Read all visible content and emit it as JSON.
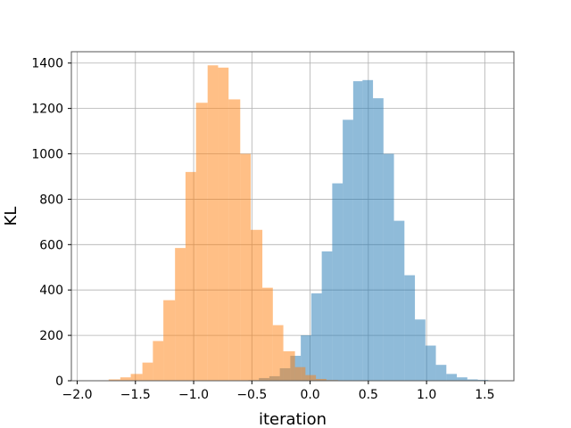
{
  "chart_data": {
    "type": "bar",
    "subtype": "overlaid-histogram",
    "title": "",
    "xlabel": "iteration",
    "ylabel": "KL",
    "xlim": [
      -2.05,
      1.75
    ],
    "ylim": [
      0,
      1450
    ],
    "xticks": [
      -2.0,
      -1.5,
      -1.0,
      -0.5,
      0.0,
      0.5,
      1.0,
      1.5
    ],
    "xtick_labels": [
      "−2.0",
      "−1.5",
      "−1.0",
      "−0.5",
      "0.0",
      "0.5",
      "1.0",
      "1.5"
    ],
    "yticks": [
      0,
      200,
      400,
      600,
      800,
      1000,
      1200,
      1400
    ],
    "ytick_labels": [
      "0",
      "200",
      "400",
      "600",
      "800",
      "1000",
      "1200",
      "1400"
    ],
    "grid": true,
    "series": [
      {
        "color": "#1f77b4",
        "opacity": 0.5,
        "bins": [
          [
            -0.53,
            -0.44,
            3
          ],
          [
            -0.44,
            -0.35,
            12
          ],
          [
            -0.35,
            -0.26,
            20
          ],
          [
            -0.26,
            -0.17,
            55
          ],
          [
            -0.17,
            -0.08,
            110
          ],
          [
            -0.08,
            0.01,
            200
          ],
          [
            0.01,
            0.1,
            385
          ],
          [
            0.1,
            0.19,
            570
          ],
          [
            0.19,
            0.28,
            870
          ],
          [
            0.28,
            0.37,
            1150
          ],
          [
            0.37,
            0.45,
            1320
          ],
          [
            0.45,
            0.54,
            1325
          ],
          [
            0.54,
            0.63,
            1245
          ],
          [
            0.63,
            0.72,
            1000
          ],
          [
            0.72,
            0.81,
            705
          ],
          [
            0.81,
            0.9,
            465
          ],
          [
            0.9,
            0.99,
            270
          ],
          [
            0.99,
            1.08,
            155
          ],
          [
            1.08,
            1.17,
            70
          ],
          [
            1.17,
            1.26,
            30
          ],
          [
            1.26,
            1.35,
            15
          ],
          [
            1.35,
            1.44,
            6
          ],
          [
            1.44,
            1.53,
            4
          ],
          [
            1.53,
            1.62,
            2
          ]
        ]
      },
      {
        "color": "#ff7f0e",
        "opacity": 0.5,
        "bins": [
          [
            -1.82,
            -1.73,
            2
          ],
          [
            -1.73,
            -1.63,
            6
          ],
          [
            -1.63,
            -1.54,
            15
          ],
          [
            -1.54,
            -1.44,
            30
          ],
          [
            -1.44,
            -1.35,
            80
          ],
          [
            -1.35,
            -1.26,
            175
          ],
          [
            -1.26,
            -1.16,
            355
          ],
          [
            -1.16,
            -1.07,
            585
          ],
          [
            -1.07,
            -0.98,
            920
          ],
          [
            -0.98,
            -0.88,
            1225
          ],
          [
            -0.88,
            -0.79,
            1390
          ],
          [
            -0.79,
            -0.7,
            1380
          ],
          [
            -0.7,
            -0.6,
            1240
          ],
          [
            -0.6,
            -0.51,
            1000
          ],
          [
            -0.51,
            -0.41,
            665
          ],
          [
            -0.41,
            -0.32,
            410
          ],
          [
            -0.32,
            -0.23,
            245
          ],
          [
            -0.23,
            -0.13,
            130
          ],
          [
            -0.13,
            -0.04,
            60
          ],
          [
            -0.04,
            0.05,
            25
          ],
          [
            0.05,
            0.14,
            8
          ],
          [
            0.14,
            0.24,
            3
          ]
        ]
      }
    ]
  }
}
